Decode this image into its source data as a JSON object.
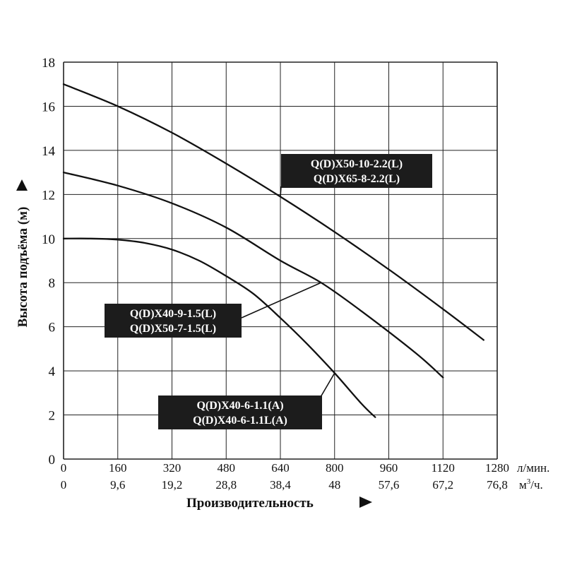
{
  "chart_data": {
    "type": "line",
    "ylabel": "Высота подъёма (м)",
    "xlabel": "Производительность",
    "ylim": [
      0,
      18
    ],
    "xlim": [
      0,
      1280
    ],
    "grid": true,
    "y_ticks": [
      "0",
      "2",
      "4",
      "6",
      "8",
      "10",
      "12",
      "14",
      "16",
      "18"
    ],
    "x_ticks_lpm": [
      "0",
      "160",
      "320",
      "480",
      "640",
      "800",
      "960",
      "1120",
      "1280"
    ],
    "x_ticks_m3h": [
      "0",
      "9,6",
      "19,2",
      "28,8",
      "38,4",
      "48",
      "57,6",
      "67,2",
      "76,8"
    ],
    "x_unit_lpm": "л/мин.",
    "x_unit_m3h_main": "м",
    "x_unit_m3h_sup": "3",
    "x_unit_m3h_tail": "/ч.",
    "series": [
      {
        "labels": [
          "Q(D)X50-10-2.2(L)",
          "Q(D)X65-8-2.2(L)"
        ],
        "x": [
          0,
          160,
          320,
          480,
          640,
          800,
          960,
          1120,
          1240
        ],
        "y": [
          17.0,
          16.0,
          14.8,
          13.4,
          11.9,
          10.3,
          8.6,
          6.8,
          5.4
        ]
      },
      {
        "labels": [
          "Q(D)X40-9-1.5(L)",
          "Q(D)X50-7-1.5(L)"
        ],
        "x": [
          0,
          160,
          320,
          480,
          640,
          760,
          880,
          1040,
          1120
        ],
        "y": [
          13.0,
          12.4,
          11.6,
          10.5,
          9.0,
          8.0,
          6.7,
          4.8,
          3.7
        ]
      },
      {
        "labels": [
          "Q(D)X40-6-1.1(A)",
          "Q(D)X40-6-1.1L(A)"
        ],
        "x": [
          0,
          80,
          160,
          240,
          320,
          400,
          480,
          560,
          640,
          720,
          800,
          880,
          920
        ],
        "y": [
          10.0,
          10.0,
          9.95,
          9.8,
          9.5,
          9.0,
          8.3,
          7.5,
          6.4,
          5.2,
          3.9,
          2.5,
          1.9
        ]
      }
    ]
  }
}
